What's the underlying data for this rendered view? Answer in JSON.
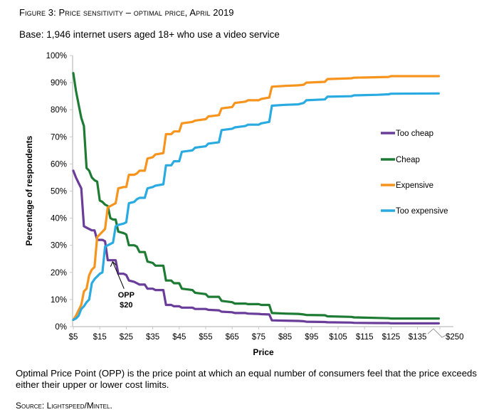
{
  "figure": {
    "title": "Figure 3: Price sensitivity – optimal price, April 2019",
    "base": "Base: 1,946 internet users aged 18+ who use a video service",
    "note": "Optimal Price Point (OPP) is the price point at which an equal number of consumers feel that the price exceeds either their upper or lower cost limits.",
    "source": "Source: Lightspeed/Mintel."
  },
  "chart_data": {
    "type": "line",
    "title": "Price sensitivity – optimal price",
    "xlabel": "Price",
    "ylabel": "Percentage of respondents",
    "ylim": [
      0,
      100
    ],
    "yticks": [
      "0%",
      "10%",
      "20%",
      "30%",
      "40%",
      "50%",
      "60%",
      "70%",
      "80%",
      "90%",
      "100%"
    ],
    "xticks": [
      "$5",
      "$15",
      "$25",
      "$35",
      "$45",
      "$55",
      "$65",
      "$75",
      "$85",
      "$95",
      "$105",
      "$115",
      "$125",
      "$135",
      "$250"
    ],
    "xlim": [
      5,
      148
    ],
    "axis_break_label": "$250",
    "grid": false,
    "legend_position": "right",
    "annotation": {
      "label_line1": "OPP",
      "label_line2": "$20",
      "x": 19.6,
      "y": 25
    },
    "series": [
      {
        "name": "Too cheap",
        "color": "#6a3d9a",
        "points": [
          [
            5,
            57.5
          ],
          [
            6,
            55
          ],
          [
            7,
            53
          ],
          [
            8,
            51
          ],
          [
            9,
            37
          ],
          [
            10,
            36.5
          ],
          [
            11,
            36
          ],
          [
            12,
            35.5
          ],
          [
            13,
            35.5
          ],
          [
            14,
            32
          ],
          [
            16,
            32
          ],
          [
            17,
            31.5
          ],
          [
            18,
            24.5
          ],
          [
            20,
            24.5
          ],
          [
            21,
            24.5
          ],
          [
            22,
            19.5
          ],
          [
            24,
            19.5
          ],
          [
            25,
            19
          ],
          [
            26,
            17
          ],
          [
            28,
            16.5
          ],
          [
            29,
            16
          ],
          [
            30,
            15.5
          ],
          [
            32,
            15.5
          ],
          [
            33,
            14
          ],
          [
            35,
            14
          ],
          [
            36,
            13.5
          ],
          [
            39,
            13.5
          ],
          [
            40,
            8
          ],
          [
            42,
            8
          ],
          [
            43,
            7.5
          ],
          [
            45,
            7.5
          ],
          [
            46,
            7
          ],
          [
            50,
            7
          ],
          [
            51,
            6.5
          ],
          [
            55,
            6.5
          ],
          [
            56,
            6.2
          ],
          [
            60,
            6
          ],
          [
            61,
            5.5
          ],
          [
            65,
            5.3
          ],
          [
            66,
            5
          ],
          [
            70,
            5
          ],
          [
            71,
            4.8
          ],
          [
            75,
            4.7
          ],
          [
            76,
            4.6
          ],
          [
            79,
            4.5
          ],
          [
            80,
            2.3
          ],
          [
            85,
            2.2
          ],
          [
            90,
            2.1
          ],
          [
            92,
            2
          ],
          [
            93,
            1.8
          ],
          [
            100,
            1.7
          ],
          [
            101,
            1.6
          ],
          [
            110,
            1.5
          ],
          [
            111,
            1.4
          ],
          [
            120,
            1.3
          ],
          [
            124,
            1.3
          ],
          [
            125,
            1.2
          ],
          [
            143,
            1.2
          ]
        ]
      },
      {
        "name": "Cheap",
        "color": "#1e7b34",
        "points": [
          [
            5,
            93.5
          ],
          [
            6,
            87
          ],
          [
            7,
            82
          ],
          [
            8,
            77
          ],
          [
            9,
            74
          ],
          [
            10,
            58.5
          ],
          [
            11,
            57.5
          ],
          [
            12,
            55
          ],
          [
            13,
            54
          ],
          [
            14,
            53.5
          ],
          [
            15,
            46.5
          ],
          [
            16,
            46
          ],
          [
            17,
            45
          ],
          [
            18,
            44.5
          ],
          [
            19,
            40
          ],
          [
            20,
            39.5
          ],
          [
            21,
            39.5
          ],
          [
            22,
            35
          ],
          [
            24,
            34.5
          ],
          [
            25,
            34
          ],
          [
            26,
            30
          ],
          [
            28,
            30
          ],
          [
            29,
            29.5
          ],
          [
            30,
            27.5
          ],
          [
            32,
            27.5
          ],
          [
            33,
            24
          ],
          [
            35,
            23.5
          ],
          [
            36,
            22.5
          ],
          [
            39,
            22.5
          ],
          [
            40,
            17
          ],
          [
            42,
            17
          ],
          [
            43,
            16
          ],
          [
            45,
            16
          ],
          [
            46,
            14
          ],
          [
            50,
            13.5
          ],
          [
            51,
            12.5
          ],
          [
            55,
            12
          ],
          [
            56,
            11
          ],
          [
            60,
            11
          ],
          [
            61,
            9.5
          ],
          [
            65,
            9
          ],
          [
            66,
            8.5
          ],
          [
            70,
            8.5
          ],
          [
            71,
            8.3
          ],
          [
            75,
            8.3
          ],
          [
            76,
            8
          ],
          [
            79,
            8
          ],
          [
            80,
            5
          ],
          [
            85,
            4.8
          ],
          [
            90,
            4.7
          ],
          [
            92,
            4.5
          ],
          [
            93,
            4.3
          ],
          [
            100,
            4.2
          ],
          [
            101,
            3.8
          ],
          [
            110,
            3.6
          ],
          [
            111,
            3.4
          ],
          [
            120,
            3.2
          ],
          [
            124,
            3.1
          ],
          [
            125,
            3
          ],
          [
            143,
            3
          ]
        ]
      },
      {
        "name": "Expensive",
        "color": "#f7941d",
        "points": [
          [
            5,
            2.5
          ],
          [
            6,
            4
          ],
          [
            7,
            6
          ],
          [
            8,
            8
          ],
          [
            9,
            13
          ],
          [
            10,
            14
          ],
          [
            11,
            19
          ],
          [
            12,
            21
          ],
          [
            13,
            22
          ],
          [
            14,
            33
          ],
          [
            15,
            34
          ],
          [
            16,
            35
          ],
          [
            17,
            36
          ],
          [
            18,
            44
          ],
          [
            19,
            44.5
          ],
          [
            20,
            45
          ],
          [
            21,
            45.5
          ],
          [
            22,
            51
          ],
          [
            24,
            51.5
          ],
          [
            25,
            51.5
          ],
          [
            26,
            56
          ],
          [
            28,
            56
          ],
          [
            29,
            56.5
          ],
          [
            30,
            57.5
          ],
          [
            32,
            57.5
          ],
          [
            33,
            62
          ],
          [
            35,
            62.5
          ],
          [
            36,
            63.5
          ],
          [
            39,
            64
          ],
          [
            40,
            71
          ],
          [
            42,
            71
          ],
          [
            43,
            72
          ],
          [
            45,
            72
          ],
          [
            46,
            75
          ],
          [
            50,
            75.5
          ],
          [
            51,
            76
          ],
          [
            55,
            76.5
          ],
          [
            56,
            77.5
          ],
          [
            60,
            78
          ],
          [
            61,
            80.5
          ],
          [
            65,
            81
          ],
          [
            66,
            82.5
          ],
          [
            70,
            83
          ],
          [
            71,
            83.5
          ],
          [
            75,
            83.5
          ],
          [
            76,
            84
          ],
          [
            79,
            84.5
          ],
          [
            80,
            88.5
          ],
          [
            85,
            88.8
          ],
          [
            90,
            89
          ],
          [
            92,
            89.2
          ],
          [
            93,
            90
          ],
          [
            100,
            90.3
          ],
          [
            101,
            91.3
          ],
          [
            110,
            91.6
          ],
          [
            111,
            91.8
          ],
          [
            120,
            92
          ],
          [
            124,
            92.1
          ],
          [
            125,
            92.4
          ],
          [
            143,
            92.4
          ]
        ]
      },
      {
        "name": "Too expensive",
        "color": "#29abe2",
        "points": [
          [
            5,
            2.5
          ],
          [
            6,
            3
          ],
          [
            7,
            4
          ],
          [
            8,
            6.5
          ],
          [
            9,
            7.5
          ],
          [
            10,
            9
          ],
          [
            11,
            10
          ],
          [
            12,
            16
          ],
          [
            13,
            17.5
          ],
          [
            14,
            18.5
          ],
          [
            15,
            19.5
          ],
          [
            16,
            20
          ],
          [
            17,
            29.5
          ],
          [
            18,
            30
          ],
          [
            19,
            30.5
          ],
          [
            20,
            31
          ],
          [
            21,
            37
          ],
          [
            22,
            37.5
          ],
          [
            24,
            38
          ],
          [
            25,
            38.5
          ],
          [
            26,
            45.5
          ],
          [
            28,
            46
          ],
          [
            29,
            47
          ],
          [
            30,
            47.5
          ],
          [
            32,
            47.5
          ],
          [
            33,
            51
          ],
          [
            35,
            51.5
          ],
          [
            36,
            52
          ],
          [
            39,
            52.5
          ],
          [
            40,
            59.5
          ],
          [
            42,
            59.5
          ],
          [
            43,
            61
          ],
          [
            45,
            61
          ],
          [
            46,
            64.5
          ],
          [
            50,
            65
          ],
          [
            51,
            66
          ],
          [
            55,
            66.5
          ],
          [
            56,
            67.5
          ],
          [
            60,
            68
          ],
          [
            61,
            72.5
          ],
          [
            65,
            73
          ],
          [
            66,
            73.5
          ],
          [
            70,
            74
          ],
          [
            71,
            74.5
          ],
          [
            75,
            74.5
          ],
          [
            76,
            75
          ],
          [
            79,
            75.5
          ],
          [
            80,
            81.5
          ],
          [
            85,
            81.8
          ],
          [
            90,
            82
          ],
          [
            92,
            82.5
          ],
          [
            93,
            83.5
          ],
          [
            100,
            83.8
          ],
          [
            101,
            84.8
          ],
          [
            110,
            85
          ],
          [
            111,
            85.3
          ],
          [
            120,
            85.5
          ],
          [
            124,
            85.7
          ],
          [
            125,
            85.9
          ],
          [
            143,
            86
          ]
        ]
      }
    ]
  }
}
